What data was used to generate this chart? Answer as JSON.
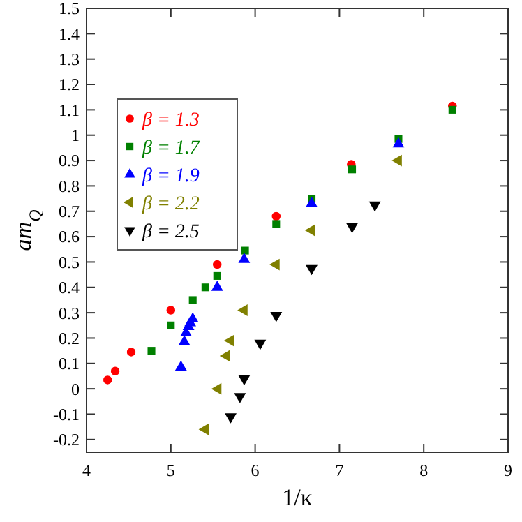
{
  "chart_data": {
    "type": "scatter",
    "xlabel": "1/κ",
    "ylabel": "am$_{Q}$",
    "xlim": [
      4,
      9
    ],
    "ylim": [
      -0.25,
      1.5
    ],
    "xticks": [
      4,
      5,
      6,
      7,
      8,
      9
    ],
    "yticks": [
      -0.2,
      -0.1,
      0,
      0.1,
      0.2,
      0.3,
      0.4,
      0.5,
      0.6,
      0.7,
      0.8,
      0.9,
      1,
      1.1,
      1.2,
      1.3,
      1.4,
      1.5
    ],
    "legend": "top left",
    "grid": false,
    "series": [
      {
        "name": "β = 1.3",
        "color": "#ff0000",
        "marker": "circle",
        "x": [
          4.25,
          4.34,
          4.53,
          5.0,
          5.55,
          6.25,
          7.14,
          8.34
        ],
        "values": [
          0.035,
          0.07,
          0.145,
          0.31,
          0.49,
          0.68,
          0.885,
          1.115
        ]
      },
      {
        "name": "β = 1.7",
        "color": "#008000",
        "marker": "square",
        "x": [
          4.77,
          5.0,
          5.26,
          5.41,
          5.55,
          5.88,
          6.25,
          6.67,
          7.15,
          7.7,
          8.34
        ],
        "values": [
          0.15,
          0.25,
          0.35,
          0.4,
          0.445,
          0.545,
          0.65,
          0.75,
          0.865,
          0.985,
          1.1
        ]
      },
      {
        "name": "β = 1.9",
        "color": "#0000ff",
        "marker": "triangle",
        "x": [
          5.12,
          5.16,
          5.18,
          5.21,
          5.23,
          5.26,
          5.55,
          5.87,
          6.67,
          7.7
        ],
        "values": [
          0.085,
          0.185,
          0.22,
          0.245,
          0.26,
          0.275,
          0.4,
          0.51,
          0.73,
          0.965
        ]
      },
      {
        "name": "β = 2.2",
        "color": "#808000",
        "marker": "triangle-left",
        "x": [
          5.41,
          5.56,
          5.66,
          5.71,
          5.87,
          6.25,
          6.67,
          7.7
        ],
        "values": [
          -0.16,
          0.0,
          0.13,
          0.19,
          0.31,
          0.49,
          0.625,
          0.9
        ]
      },
      {
        "name": "β = 2.5",
        "color": "#000000",
        "marker": "triangle-down",
        "x": [
          5.71,
          5.82,
          5.87,
          6.06,
          6.25,
          6.67,
          7.15,
          7.42
        ],
        "values": [
          -0.11,
          -0.03,
          0.04,
          0.18,
          0.29,
          0.475,
          0.64,
          0.725
        ]
      }
    ]
  }
}
